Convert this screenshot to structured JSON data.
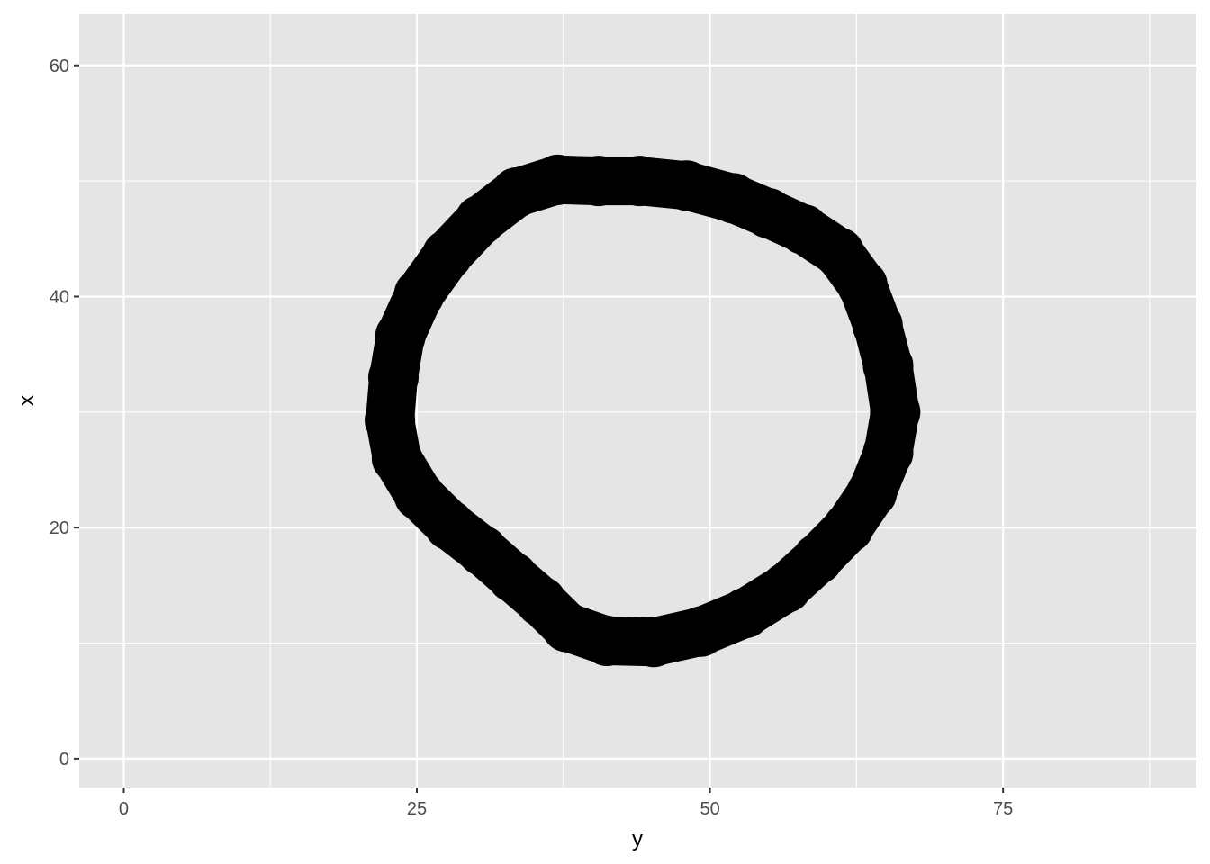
{
  "chart_data": {
    "type": "scatter",
    "title": "",
    "xlabel": "y",
    "ylabel": "x",
    "xlim": [
      -3.8,
      91.5
    ],
    "ylim": [
      -2.5,
      64.5
    ],
    "x_ticks": [
      0,
      25,
      50,
      75
    ],
    "y_ticks": [
      0,
      20,
      40,
      60
    ],
    "grid": true,
    "legend": "none",
    "colors": {
      "panel": "#e5e5e5",
      "grid": "#ffffff",
      "points": "#000000"
    },
    "series": [
      {
        "values": [
          [
            44,
            50
          ],
          [
            48,
            49.6
          ],
          [
            52,
            48.5
          ],
          [
            55,
            47.2
          ],
          [
            58,
            45.8
          ],
          [
            61,
            43.8
          ],
          [
            63,
            41
          ],
          [
            64.3,
            37.5
          ],
          [
            65.2,
            34
          ],
          [
            65.8,
            30
          ],
          [
            65.2,
            26.5
          ],
          [
            63.8,
            23
          ],
          [
            61.8,
            20
          ],
          [
            59.2,
            17.3
          ],
          [
            56.5,
            14.8
          ],
          [
            53,
            12.6
          ],
          [
            49.2,
            11
          ],
          [
            45.2,
            10.1
          ],
          [
            41.2,
            10.2
          ],
          [
            37.8,
            11.4
          ],
          [
            35.6,
            13.6
          ],
          [
            33.2,
            15.7
          ],
          [
            30.6,
            18
          ],
          [
            27.8,
            20.2
          ],
          [
            25.2,
            22.8
          ],
          [
            23.3,
            26
          ],
          [
            22.7,
            29.3
          ],
          [
            23,
            33
          ],
          [
            23.6,
            36.6
          ],
          [
            25.2,
            40.2
          ],
          [
            27.6,
            43.6
          ],
          [
            30.4,
            46.6
          ],
          [
            33.5,
            49
          ],
          [
            37,
            50.1
          ],
          [
            40.5,
            50
          ]
        ]
      }
    ]
  }
}
